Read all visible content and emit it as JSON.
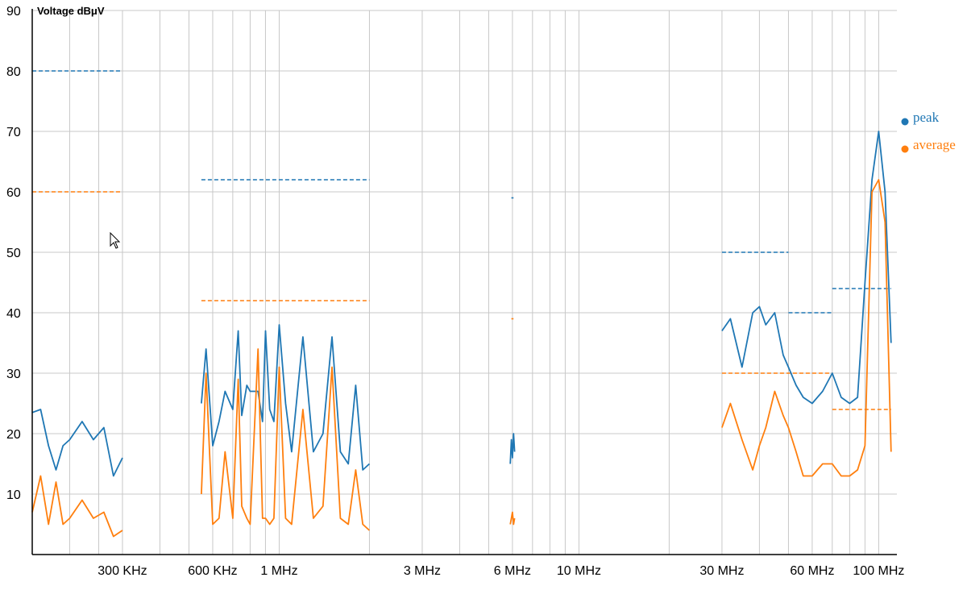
{
  "chart_data": {
    "type": "line",
    "ylabel": "Voltage dBμV",
    "ylim": [
      0,
      90
    ],
    "y_ticks": [
      10,
      20,
      30,
      40,
      50,
      60,
      70,
      80,
      90
    ],
    "x_scale": "log",
    "x_unit": "MHz",
    "xlim": [
      0.15,
      115
    ],
    "x_grid": [
      0.2,
      0.25,
      0.3,
      0.4,
      0.5,
      0.6,
      0.7,
      0.8,
      0.9,
      1,
      2,
      3,
      4,
      5,
      6,
      7,
      8,
      9,
      10,
      20,
      30,
      40,
      50,
      60,
      70,
      80,
      90,
      100
    ],
    "x_ticks": [
      {
        "value": 0.3,
        "label": "300 KHz"
      },
      {
        "value": 0.6,
        "label": "600 KHz"
      },
      {
        "value": 1,
        "label": "1 MHz"
      },
      {
        "value": 3,
        "label": "3 MHz"
      },
      {
        "value": 6,
        "label": "6 MHz"
      },
      {
        "value": 10,
        "label": "10 MHz"
      },
      {
        "value": 30,
        "label": "30 MHz"
      },
      {
        "value": 60,
        "label": "60 MHz"
      },
      {
        "value": 100,
        "label": "100 MHz"
      }
    ],
    "grid": true,
    "legend_position": "right",
    "series": [
      {
        "name": "peak",
        "color": "#1f77b4",
        "segments": [
          {
            "x": [
              0.15,
              0.16,
              0.17,
              0.18,
              0.19,
              0.2,
              0.22,
              0.24,
              0.26,
              0.28,
              0.3
            ],
            "y": [
              23.5,
              24,
              18,
              14,
              18,
              19,
              22,
              19,
              21,
              13,
              16
            ]
          },
          {
            "x": [
              0.55,
              0.57,
              0.6,
              0.63,
              0.66,
              0.7,
              0.73,
              0.75,
              0.78,
              0.8,
              0.85,
              0.88,
              0.9,
              0.93,
              0.96,
              1.0,
              1.05,
              1.1,
              1.2,
              1.3,
              1.4,
              1.5,
              1.6,
              1.7,
              1.8,
              1.9,
              2.0
            ],
            "y": [
              25,
              34,
              18,
              22,
              27,
              24,
              37,
              23,
              28,
              27,
              27,
              22,
              37,
              24,
              22,
              38,
              25,
              17,
              36,
              17,
              20,
              36,
              17,
              15,
              28,
              14,
              15
            ]
          },
          {
            "x": [
              5.9,
              5.95,
              6.0,
              6.05,
              6.1
            ],
            "y": [
              15,
              19,
              16,
              20,
              17
            ]
          },
          {
            "x": [
              30,
              32,
              35,
              38,
              40,
              42,
              45,
              48,
              50,
              53,
              56,
              60,
              65,
              70,
              75,
              80,
              85,
              90,
              95,
              100,
              105,
              110
            ],
            "y": [
              37,
              39,
              31,
              40,
              41,
              38,
              40,
              33,
              31,
              28,
              26,
              25,
              27,
              30,
              26,
              25,
              26,
              45,
              62,
              70,
              60,
              35
            ]
          }
        ]
      },
      {
        "name": "average",
        "color": "#ff7f0e",
        "segments": [
          {
            "x": [
              0.15,
              0.16,
              0.17,
              0.18,
              0.19,
              0.2,
              0.22,
              0.24,
              0.26,
              0.28,
              0.3
            ],
            "y": [
              7,
              13,
              5,
              12,
              5,
              6,
              9,
              6,
              7,
              3,
              4
            ]
          },
          {
            "x": [
              0.55,
              0.57,
              0.6,
              0.63,
              0.66,
              0.7,
              0.73,
              0.75,
              0.78,
              0.8,
              0.85,
              0.88,
              0.9,
              0.93,
              0.96,
              1.0,
              1.05,
              1.1,
              1.2,
              1.3,
              1.4,
              1.5,
              1.6,
              1.7,
              1.8,
              1.9,
              2.0
            ],
            "y": [
              10,
              30,
              5,
              6,
              17,
              6,
              29,
              8,
              6,
              5,
              34,
              6,
              6,
              5,
              6,
              31,
              6,
              5,
              24,
              6,
              8,
              31,
              6,
              5,
              14,
              5,
              4
            ]
          },
          {
            "x": [
              5.9,
              5.95,
              6.0,
              6.05,
              6.1
            ],
            "y": [
              5,
              6,
              7,
              5,
              6
            ]
          },
          {
            "x": [
              30,
              32,
              35,
              38,
              40,
              42,
              45,
              48,
              50,
              53,
              56,
              60,
              65,
              70,
              75,
              80,
              85,
              90,
              95,
              100,
              105,
              110
            ],
            "y": [
              21,
              25,
              19,
              14,
              18,
              21,
              27,
              23,
              21,
              17,
              13,
              13,
              15,
              15,
              13,
              13,
              14,
              18,
              60,
              62,
              55,
              17
            ]
          }
        ]
      }
    ],
    "limit_lines": [
      {
        "series": "peak",
        "x": [
          0.15,
          0.3
        ],
        "y": 80
      },
      {
        "series": "average",
        "x": [
          0.15,
          0.3
        ],
        "y": 60
      },
      {
        "series": "peak",
        "x": [
          0.55,
          2.0
        ],
        "y": 62
      },
      {
        "series": "average",
        "x": [
          0.55,
          2.0
        ],
        "y": 42
      },
      {
        "series": "peak",
        "x": [
          5.95,
          6.05
        ],
        "y": 59
      },
      {
        "series": "average",
        "x": [
          5.95,
          6.05
        ],
        "y": 39
      },
      {
        "series": "peak",
        "x": [
          30,
          50
        ],
        "y": 50
      },
      {
        "series": "average",
        "x": [
          30,
          70
        ],
        "y": 30
      },
      {
        "series": "peak",
        "x": [
          50,
          70
        ],
        "y": 40
      },
      {
        "series": "peak",
        "x": [
          70,
          110
        ],
        "y": 44
      },
      {
        "series": "average",
        "x": [
          70,
          110
        ],
        "y": 24
      }
    ]
  }
}
